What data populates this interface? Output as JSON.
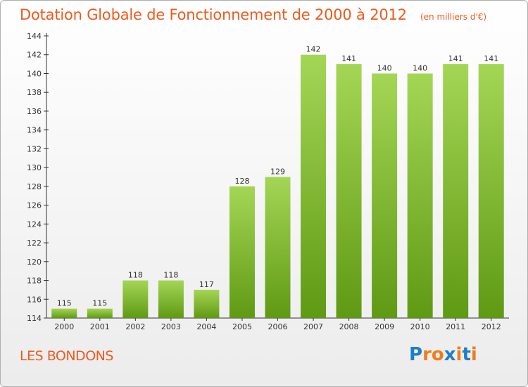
{
  "title": "Dotation Globale de Fonctionnement de 2000 à 2012",
  "unit": "(en milliers d'€)",
  "place_name": "LES BONDONS",
  "logo_text": "Proxiti",
  "colors": {
    "title": "#ef5a1e",
    "bar_top": "#a4d655",
    "bar_bottom": "#5f9a14",
    "logo_letters": [
      "#1e7ec8",
      "#ef7d1a",
      "#ef7d1a",
      "#1e7ec8",
      "#ef7d1a",
      "#1e7ec8",
      "#ef7d1a"
    ]
  },
  "chart_data": {
    "type": "bar",
    "title": "Dotation Globale de Fonctionnement de 2000 à 2012",
    "subtitle": "(en milliers d'€)",
    "xlabel": "",
    "ylabel": "",
    "categories": [
      "2000",
      "2001",
      "2002",
      "2003",
      "2004",
      "2005",
      "2006",
      "2007",
      "2008",
      "2009",
      "2010",
      "2011",
      "2012"
    ],
    "values": [
      115,
      115,
      118,
      118,
      117,
      128,
      129,
      142,
      141,
      140,
      140,
      141,
      141
    ],
    "ylim": [
      114,
      144
    ],
    "yticks": [
      114,
      116,
      118,
      120,
      122,
      124,
      126,
      128,
      130,
      132,
      134,
      136,
      138,
      140,
      142,
      144
    ],
    "grid": false,
    "legend": "none",
    "data_labels": true
  }
}
